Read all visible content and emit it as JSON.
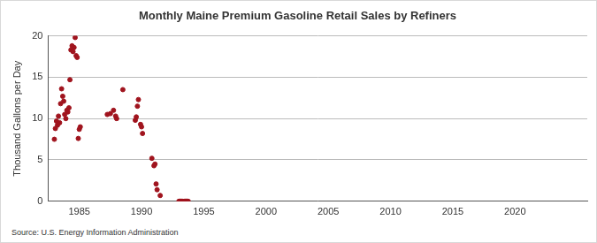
{
  "chart_data": {
    "type": "scatter",
    "title": "Monthly Maine Premium Gasoline Retail Sales by Refiners",
    "y_label": "Thousand Gallons per Day",
    "source": "Source: U.S. Energy Information Administration",
    "color": "#a0141e",
    "grid": "y",
    "xlim": [
      1982.5,
      2025.8
    ],
    "xticks": [
      1985,
      1990,
      1995,
      2000,
      2005,
      2010,
      2015,
      2020
    ],
    "ylim": [
      0,
      20
    ],
    "yticks": [
      0,
      5,
      10,
      15,
      20
    ],
    "x": [
      1983.0,
      1983.08,
      1983.17,
      1983.25,
      1983.33,
      1983.42,
      1983.5,
      1983.58,
      1983.67,
      1983.75,
      1983.83,
      1983.92,
      1984.0,
      1984.08,
      1984.17,
      1984.25,
      1984.33,
      1984.42,
      1984.5,
      1984.58,
      1984.67,
      1984.75,
      1984.83,
      1984.92,
      1985.0,
      1985.08,
      1987.25,
      1987.5,
      1987.75,
      1987.92,
      1988.0,
      1988.5,
      1989.5,
      1989.58,
      1989.67,
      1989.75,
      1989.92,
      1990.0,
      1990.08,
      1990.83,
      1991.0,
      1991.08,
      1991.17,
      1991.25,
      1991.5,
      1993.0,
      1993.08,
      1993.17,
      1993.25,
      1993.33,
      1993.42,
      1993.5,
      1993.58,
      1993.67,
      1993.75
    ],
    "values": [
      7.5,
      8.8,
      9.7,
      9.2,
      10.3,
      9.5,
      11.8,
      13.6,
      12.7,
      12.1,
      10.5,
      10.0,
      11.0,
      10.8,
      11.3,
      14.7,
      18.3,
      18.8,
      18.1,
      18.6,
      19.8,
      17.6,
      17.4,
      7.6,
      8.7,
      9.0,
      10.5,
      10.6,
      11.0,
      10.3,
      10.0,
      13.5,
      9.8,
      10.2,
      11.5,
      12.3,
      9.3,
      9.0,
      8.2,
      5.2,
      4.3,
      4.5,
      2.1,
      1.4,
      0.7,
      0,
      0,
      0,
      0,
      0,
      0,
      0,
      0,
      0,
      0
    ]
  }
}
